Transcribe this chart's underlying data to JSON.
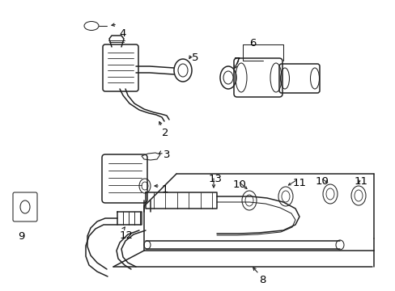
{
  "background_color": "#ffffff",
  "line_color": "#222222",
  "label_color": "#000000",
  "fig_width": 4.89,
  "fig_height": 3.6,
  "dpi": 100,
  "font_size": 9.5
}
